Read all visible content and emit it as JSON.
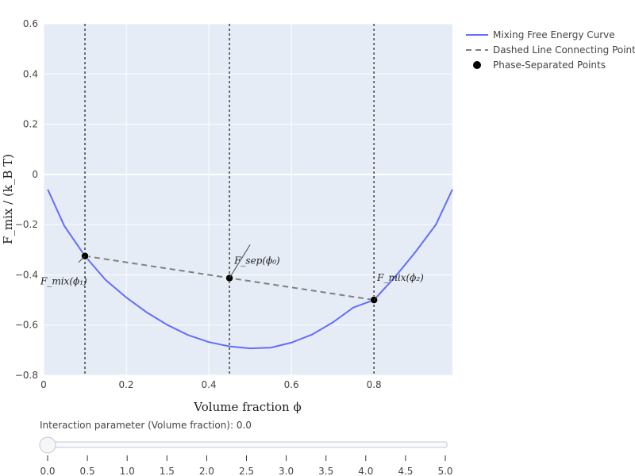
{
  "chart_data": {
    "type": "line",
    "title": "",
    "xlabel": "Volume fraction ϕ",
    "ylabel": "F_mix / (k_B T)",
    "xlim": [
      0,
      0.99
    ],
    "ylim": [
      -0.8,
      0.6
    ],
    "xticks": [
      0,
      0.2,
      0.4,
      0.6,
      0.8
    ],
    "xtick_labels": [
      "0",
      "0.2",
      "0.4",
      "0.6",
      "0.8"
    ],
    "yticks": [
      0.6,
      0.4,
      0.2,
      0,
      -0.2,
      -0.4,
      -0.6,
      -0.8
    ],
    "ytick_labels": [
      "0.6",
      "0.4",
      "0.2",
      "0",
      "−0.2",
      "−0.4",
      "−0.6",
      "−0.8"
    ],
    "grid": true,
    "legend_position": "top-right-outside",
    "series": [
      {
        "name": "Mixing Free Energy Curve",
        "kind": "line",
        "color": "#636efa",
        "x": [
          0.01,
          0.05,
          0.1,
          0.15,
          0.2,
          0.25,
          0.3,
          0.35,
          0.4,
          0.45,
          0.5,
          0.55,
          0.6,
          0.65,
          0.7,
          0.75,
          0.8,
          0.85,
          0.9,
          0.95,
          0.99
        ],
        "y": [
          -0.06,
          -0.205,
          -0.325,
          -0.42,
          -0.49,
          -0.55,
          -0.6,
          -0.64,
          -0.668,
          -0.685,
          -0.693,
          -0.69,
          -0.67,
          -0.638,
          -0.59,
          -0.53,
          -0.5,
          -0.41,
          -0.31,
          -0.2,
          -0.06
        ]
      },
      {
        "name": "Dashed Line Connecting Points",
        "kind": "dashed",
        "color": "#7f7f7f",
        "x": [
          0.1,
          0.8
        ],
        "y": [
          -0.325,
          -0.5
        ]
      },
      {
        "name": "Phase-Separated Points",
        "kind": "markers",
        "color": "#000000",
        "x": [
          0.1,
          0.45,
          0.8
        ],
        "y": [
          -0.325,
          -0.413,
          -0.5
        ]
      }
    ],
    "vlines": [
      0.1,
      0.45,
      0.8
    ],
    "annotations": [
      {
        "text": "F_mix(ϕ₁)",
        "x": 0.1,
        "y": -0.325
      },
      {
        "text": "F_sep(ϕ₀)",
        "x": 0.45,
        "y": -0.413
      },
      {
        "text": "F_mix(ϕ₂)",
        "x": 0.8,
        "y": -0.5
      }
    ]
  },
  "slider": {
    "label": "Interaction parameter (Volume fraction): 0.0",
    "value": 0.0,
    "ticks": [
      "0.0",
      "0.5",
      "1.0",
      "1.5",
      "2.0",
      "2.5",
      "3.0",
      "3.5",
      "4.0",
      "4.5",
      "5.0"
    ]
  }
}
